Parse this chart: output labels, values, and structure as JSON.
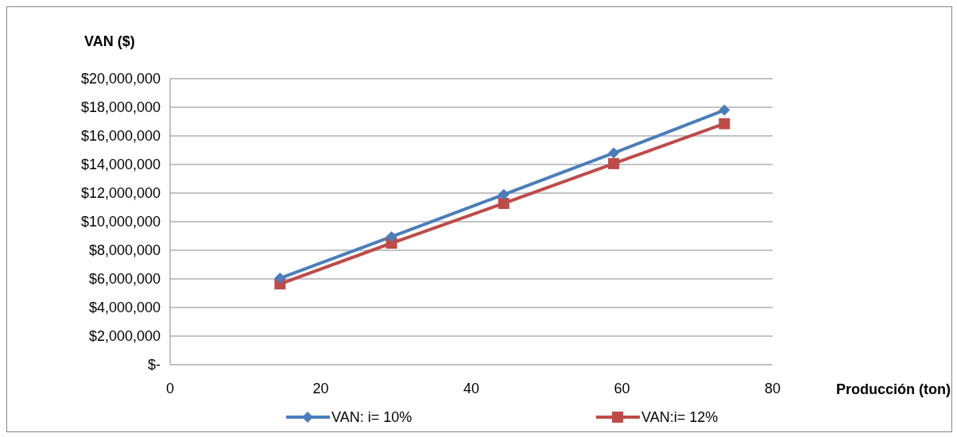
{
  "chart_data": {
    "type": "line",
    "xlabel": "Producción (ton)",
    "ylabel": "VAN ($)",
    "xlim": [
      0,
      80
    ],
    "xticks": [
      0,
      20,
      40,
      60,
      80
    ],
    "ylim": [
      0,
      20000000
    ],
    "yticks": [
      {
        "value": 0,
        "label": "$-"
      },
      {
        "value": 2000000,
        "label": "$2,000,000"
      },
      {
        "value": 4000000,
        "label": "$4,000,000"
      },
      {
        "value": 6000000,
        "label": "$6,000,000"
      },
      {
        "value": 8000000,
        "label": "$8,000,000"
      },
      {
        "value": 10000000,
        "label": "$10,000,000"
      },
      {
        "value": 12000000,
        "label": "$12,000,000"
      },
      {
        "value": 14000000,
        "label": "$14,000,000"
      },
      {
        "value": 16000000,
        "label": "$16,000,000"
      },
      {
        "value": 18000000,
        "label": "$18,000,000"
      },
      {
        "value": 20000000,
        "label": "$20,000,000"
      }
    ],
    "grid": "y",
    "legend": "bottom",
    "line_style": "solid",
    "series": [
      {
        "name": "VAN: i= 10%",
        "color": "#4a7ebb",
        "marker": "diamond",
        "x": [
          14.6,
          29.4,
          44.3,
          58.9,
          73.6
        ],
        "values": [
          6050000,
          8950000,
          11900000,
          14800000,
          17800000
        ]
      },
      {
        "name": "VAN:i= 12%",
        "color": "#be4b48",
        "marker": "square",
        "x": [
          14.6,
          29.4,
          44.3,
          58.9,
          73.6
        ],
        "values": [
          5650000,
          8500000,
          11280000,
          14060000,
          16850000
        ]
      }
    ]
  }
}
